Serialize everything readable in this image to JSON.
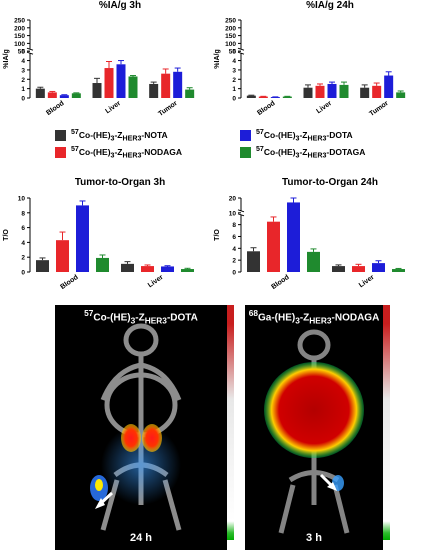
{
  "chart_data": [
    {
      "type": "bar",
      "title": "%IA/g 3h",
      "ylabel": "%IA/g",
      "ytick_labels": [
        "0",
        "1",
        "2",
        "3",
        "4",
        "5",
        "50",
        "100",
        "150",
        "200",
        "250"
      ],
      "categories": [
        "Blood",
        "Liver",
        "Tumor"
      ],
      "series": [
        {
          "name": "57Co-(HE)3-ZHER3-NOTA",
          "color": "#333333",
          "values": [
            1.0,
            1.6,
            1.5
          ],
          "errors": [
            0.15,
            0.5,
            0.2
          ]
        },
        {
          "name": "57Co-(HE)3-ZHER3-NODAGA",
          "color": "#e8262a",
          "values": [
            0.6,
            3.2,
            2.6
          ],
          "errors": [
            0.1,
            0.7,
            0.5
          ]
        },
        {
          "name": "57Co-(HE)3-ZHER3-DOTA",
          "color": "#1d1dd8",
          "values": [
            0.3,
            3.6,
            2.8
          ],
          "errors": [
            0.05,
            0.4,
            0.4
          ]
        },
        {
          "name": "57Co-(HE)3-ZHER3-DOTAGA",
          "color": "#1f8a2e",
          "values": [
            0.5,
            2.3,
            0.9
          ],
          "errors": [
            0.05,
            0.1,
            0.2
          ]
        }
      ]
    },
    {
      "type": "bar",
      "title": "%IA/g 24h",
      "ylabel": "%IA/g",
      "ytick_labels": [
        "0",
        "1",
        "2",
        "3",
        "4",
        "5",
        "50",
        "100",
        "150",
        "200",
        "250"
      ],
      "categories": [
        "Blood",
        "Liver",
        "Tumor"
      ],
      "series": [
        {
          "name": "57Co-(HE)3-ZHER3-NOTA",
          "color": "#333333",
          "values": [
            0.25,
            1.1,
            1.1
          ],
          "errors": [
            0.05,
            0.3,
            0.3
          ]
        },
        {
          "name": "57Co-(HE)3-ZHER3-NODAGA",
          "color": "#e8262a",
          "values": [
            0.15,
            1.3,
            1.3
          ],
          "errors": [
            0.03,
            0.2,
            0.3
          ]
        },
        {
          "name": "57Co-(HE)3-ZHER3-DOTA",
          "color": "#1d1dd8",
          "values": [
            0.1,
            1.5,
            2.4
          ],
          "errors": [
            0.02,
            0.2,
            0.4
          ]
        },
        {
          "name": "57Co-(HE)3-ZHER3-DOTAGA",
          "color": "#1f8a2e",
          "values": [
            0.15,
            1.4,
            0.6
          ],
          "errors": [
            0.03,
            0.3,
            0.15
          ]
        }
      ]
    },
    {
      "type": "bar",
      "title": "Tumor-to-Organ 3h",
      "ylabel": "T/O",
      "ytick_labels": [
        "0",
        "2",
        "4",
        "6",
        "8",
        "10"
      ],
      "categories": [
        "Blood",
        "Liver"
      ],
      "series": [
        {
          "name": "57Co-(HE)3-ZHER3-NOTA",
          "color": "#333333",
          "values": [
            1.6,
            1.1
          ],
          "errors": [
            0.3,
            0.3
          ]
        },
        {
          "name": "57Co-(HE)3-ZHER3-NODAGA",
          "color": "#e8262a",
          "values": [
            4.3,
            0.8
          ],
          "errors": [
            1.1,
            0.15
          ]
        },
        {
          "name": "57Co-(HE)3-ZHER3-DOTA",
          "color": "#1d1dd8",
          "values": [
            9.0,
            0.75
          ],
          "errors": [
            0.6,
            0.1
          ]
        },
        {
          "name": "57Co-(HE)3-ZHER3-DOTAGA",
          "color": "#1f8a2e",
          "values": [
            1.9,
            0.4
          ],
          "errors": [
            0.4,
            0.1
          ]
        }
      ]
    },
    {
      "type": "bar",
      "title": "Tumor-to-Organ 24h",
      "ylabel": "T/O",
      "ytick_labels": [
        "0",
        "2",
        "4",
        "6",
        "8",
        "10",
        "20"
      ],
      "categories": [
        "Blood",
        "Liver"
      ],
      "series": [
        {
          "name": "57Co-(HE)3-ZHER3-NOTA",
          "color": "#333333",
          "values": [
            3.5,
            1.0
          ],
          "errors": [
            0.6,
            0.2
          ]
        },
        {
          "name": "57Co-(HE)3-ZHER3-NODAGA",
          "color": "#e8262a",
          "values": [
            8.5,
            1.0
          ],
          "errors": [
            0.8,
            0.3
          ]
        },
        {
          "name": "57Co-(HE)3-ZHER3-DOTA",
          "color": "#1d1dd8",
          "values": [
            17.0,
            1.5
          ],
          "errors": [
            3.0,
            0.4
          ]
        },
        {
          "name": "57Co-(HE)3-ZHER3-DOTAGA",
          "color": "#1f8a2e",
          "values": [
            3.4,
            0.5
          ],
          "errors": [
            0.5,
            0.1
          ]
        }
      ]
    }
  ],
  "legend": [
    {
      "prefix": "57",
      "iso": "Co",
      "mid": "-(HE)",
      "sub3": "3",
      "dash": "-Z",
      "her": "HER3",
      "chel": "-NOTA",
      "color": "#333333"
    },
    {
      "prefix": "57",
      "iso": "Co",
      "mid": "-(HE)",
      "sub3": "3",
      "dash": "-Z",
      "her": "HER3",
      "chel": "-DOTA",
      "color": "#1d1dd8"
    },
    {
      "prefix": "57",
      "iso": "Co",
      "mid": "-(HE)",
      "sub3": "3",
      "dash": "-Z",
      "her": "HER3",
      "chel": "-NODAGA",
      "color": "#e8262a"
    },
    {
      "prefix": "57",
      "iso": "Co",
      "mid": "-(HE)",
      "sub3": "3",
      "dash": "-Z",
      "her": "HER3",
      "chel": "-DOTAGA",
      "color": "#1f8a2e"
    }
  ],
  "images": [
    {
      "prefix": "57",
      "iso": "Co",
      "mid": "-(HE)",
      "sub3": "3",
      "dash": "-Z",
      "her": "HER3",
      "chel": "-DOTA",
      "time": "24 h"
    },
    {
      "prefix": "68",
      "iso": "Ga",
      "mid": "-(HE)",
      "sub3": "3",
      "dash": "-Z",
      "her": "HER3",
      "chel": "-NODAGA",
      "time": "3 h"
    }
  ]
}
